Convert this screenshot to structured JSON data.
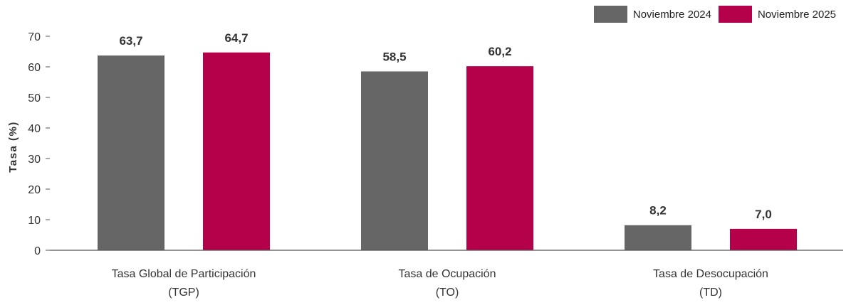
{
  "chart_data": {
    "type": "bar",
    "categories": [
      [
        "Tasa Global de Participación",
        "(TGP)"
      ],
      [
        "Tasa de Ocupación",
        "(TO)"
      ],
      [
        "Tasa de Desocupación",
        "(TD)"
      ]
    ],
    "series": [
      {
        "name": "Noviembre 2024",
        "color": "#666666",
        "values": [
          63.7,
          58.5,
          8.2
        ],
        "labels": [
          "63,7",
          "58,5",
          "8,2"
        ]
      },
      {
        "name": "Noviembre 2025",
        "color": "#b5004a",
        "values": [
          64.7,
          60.2,
          7.0
        ],
        "labels": [
          "64,7",
          "60,2",
          "7,0"
        ]
      }
    ],
    "ylabel": "Tasa (%)",
    "ylim": [
      0,
      70
    ],
    "yticks": [
      0,
      10,
      20,
      30,
      40,
      50,
      60,
      70
    ],
    "legend": "top-right",
    "grid": false
  }
}
